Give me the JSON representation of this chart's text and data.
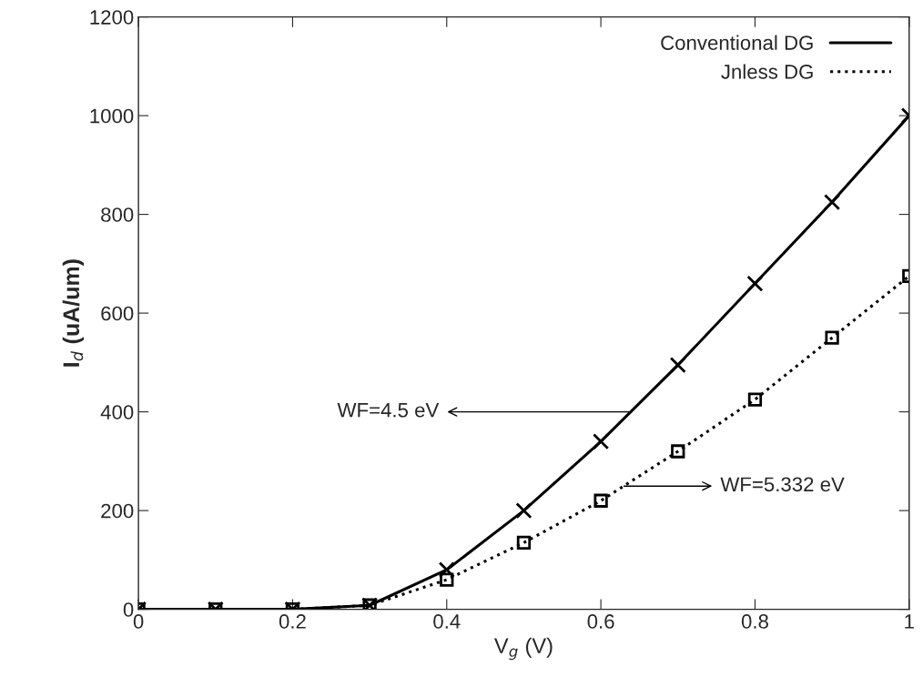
{
  "chart_data": {
    "type": "line",
    "xlabel": "V$_{g}$ (V)",
    "ylabel": "I$_{d}$ (uA/um)",
    "x": [
      0,
      0.1,
      0.2,
      0.3,
      0.4,
      0.5,
      0.6,
      0.7,
      0.8,
      0.9,
      1.0
    ],
    "series": [
      {
        "name": "Conventional DG",
        "color": "#000000",
        "marker": "cross",
        "line_style": "solid",
        "values": [
          0,
          0,
          0,
          8,
          80,
          200,
          340,
          495,
          660,
          825,
          1000
        ]
      },
      {
        "name": "Jnless DG",
        "color": "#000000",
        "marker": "square",
        "line_style": "dotted",
        "values": [
          0,
          0,
          0,
          8,
          60,
          135,
          220,
          320,
          425,
          550,
          675
        ]
      }
    ],
    "xlim": [
      0,
      1
    ],
    "ylim": [
      0,
      1200
    ],
    "xticks": [
      0,
      0.2,
      0.4,
      0.6,
      0.8,
      1
    ],
    "yticks": [
      0,
      200,
      400,
      600,
      800,
      1000,
      1200
    ],
    "grid": false,
    "legend": "top right",
    "annotations": [
      {
        "text": "WF=4.5 eV",
        "x": 0.64,
        "y": 400
      },
      "WF=5.332 eV"
    ]
  }
}
